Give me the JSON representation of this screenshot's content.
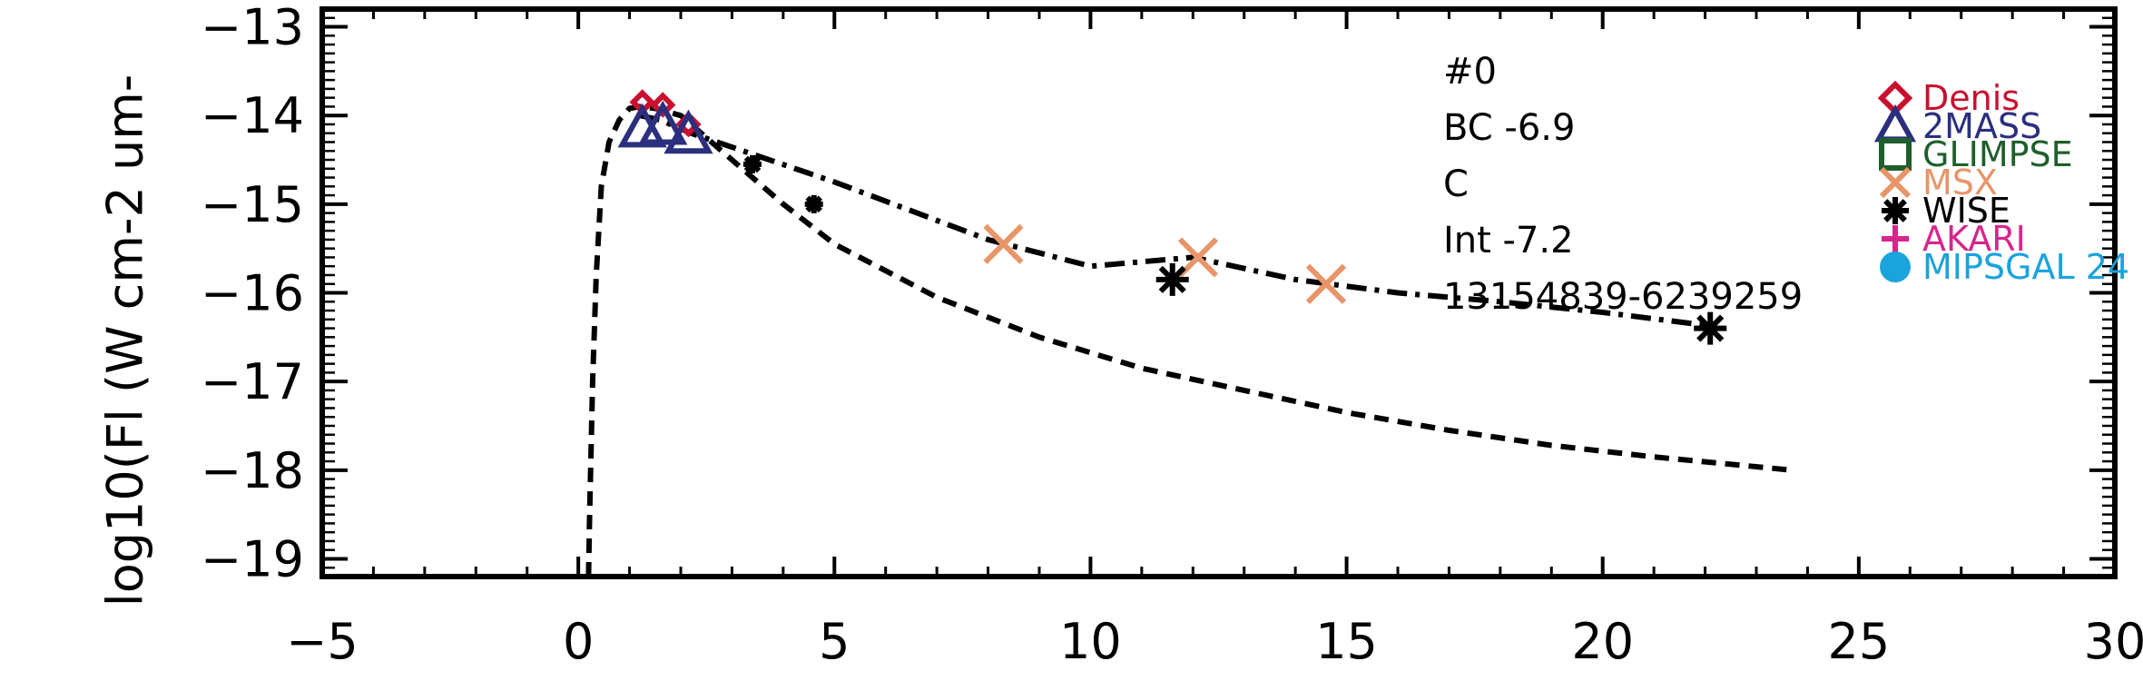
{
  "chart_data": {
    "type": "line",
    "title": "",
    "xlabel": "",
    "ylabel": "log10(Fl (W cm-2 um-",
    "xlim": [
      -5,
      30
    ],
    "ylim": [
      -19.2,
      -12.8
    ],
    "x_ticks": [
      -5,
      0,
      5,
      10,
      15,
      20,
      25,
      30
    ],
    "x_tick_labels": [
      "−5",
      "0",
      "5",
      "10",
      "15",
      "20",
      "25",
      "30"
    ],
    "y_ticks": [
      -19,
      -18,
      -17,
      -16,
      -15,
      -14,
      -13
    ],
    "y_tick_labels": [
      "−19",
      "−18",
      "−17",
      "−16",
      "−15",
      "−14",
      "−13"
    ],
    "grid": false,
    "legend_position": "right",
    "annotations": [
      "#0",
      "BC  -6.9",
      "C",
      "Int  -7.2",
      "13154839-6239259"
    ],
    "lines": [
      {
        "style": "dotted-dashed",
        "color": "#000000",
        "x": [
          1.2,
          1.6,
          2.2,
          5,
          8,
          10,
          12,
          14,
          16,
          18,
          20,
          22.2
        ],
        "y": [
          -14.0,
          -14.05,
          -14.2,
          -14.75,
          -15.4,
          -15.7,
          -15.6,
          -15.85,
          -16.0,
          -16.1,
          -16.22,
          -16.38
        ]
      },
      {
        "style": "dashed",
        "color": "#000000",
        "x": [
          0.2,
          0.22,
          0.28,
          0.35,
          0.45,
          0.6,
          0.8,
          1.0,
          1.2,
          1.5,
          2.0,
          3,
          4,
          5,
          7,
          9,
          11,
          13,
          15,
          17,
          19,
          21,
          23.7
        ],
        "y": [
          -19.2,
          -18.5,
          -17.0,
          -15.8,
          -14.8,
          -14.3,
          -14.05,
          -13.92,
          -13.9,
          -13.92,
          -14.0,
          -14.5,
          -15.0,
          -15.45,
          -16.05,
          -16.5,
          -16.85,
          -17.1,
          -17.35,
          -17.55,
          -17.72,
          -17.85,
          -18.0
        ]
      }
    ],
    "series": [
      {
        "name": "Denis",
        "marker": "diamond",
        "color": "#c8102e",
        "x": [
          1.25,
          1.65,
          2.15
        ],
        "y": [
          -13.85,
          -13.88,
          -14.1
        ]
      },
      {
        "name": "2MASS",
        "marker": "triangle",
        "color": "#2b2f7d",
        "x": [
          1.25,
          1.65,
          2.15
        ],
        "y": [
          -14.15,
          -14.12,
          -14.22
        ]
      },
      {
        "name": "GLIMPSE",
        "marker": "square",
        "color": "#1f5f2b",
        "x": [],
        "y": []
      },
      {
        "name": "MSX",
        "marker": "x",
        "color": "#e8956a",
        "x": [
          8.3,
          12.1,
          14.6
        ],
        "y": [
          -15.45,
          -15.6,
          -15.9
        ]
      },
      {
        "name": "WISE",
        "marker": "asterisk",
        "color": "#000000",
        "x": [
          3.4,
          4.6,
          11.6,
          22.1
        ],
        "y": [
          -14.55,
          -15.0,
          -15.85,
          -16.4
        ]
      },
      {
        "name": "AKARI",
        "marker": "plus",
        "color": "#d6268c",
        "x": [],
        "y": []
      },
      {
        "name": "MIPSGAL 24",
        "marker": "circle",
        "color": "#1aa3dc",
        "x": [],
        "y": []
      }
    ]
  }
}
